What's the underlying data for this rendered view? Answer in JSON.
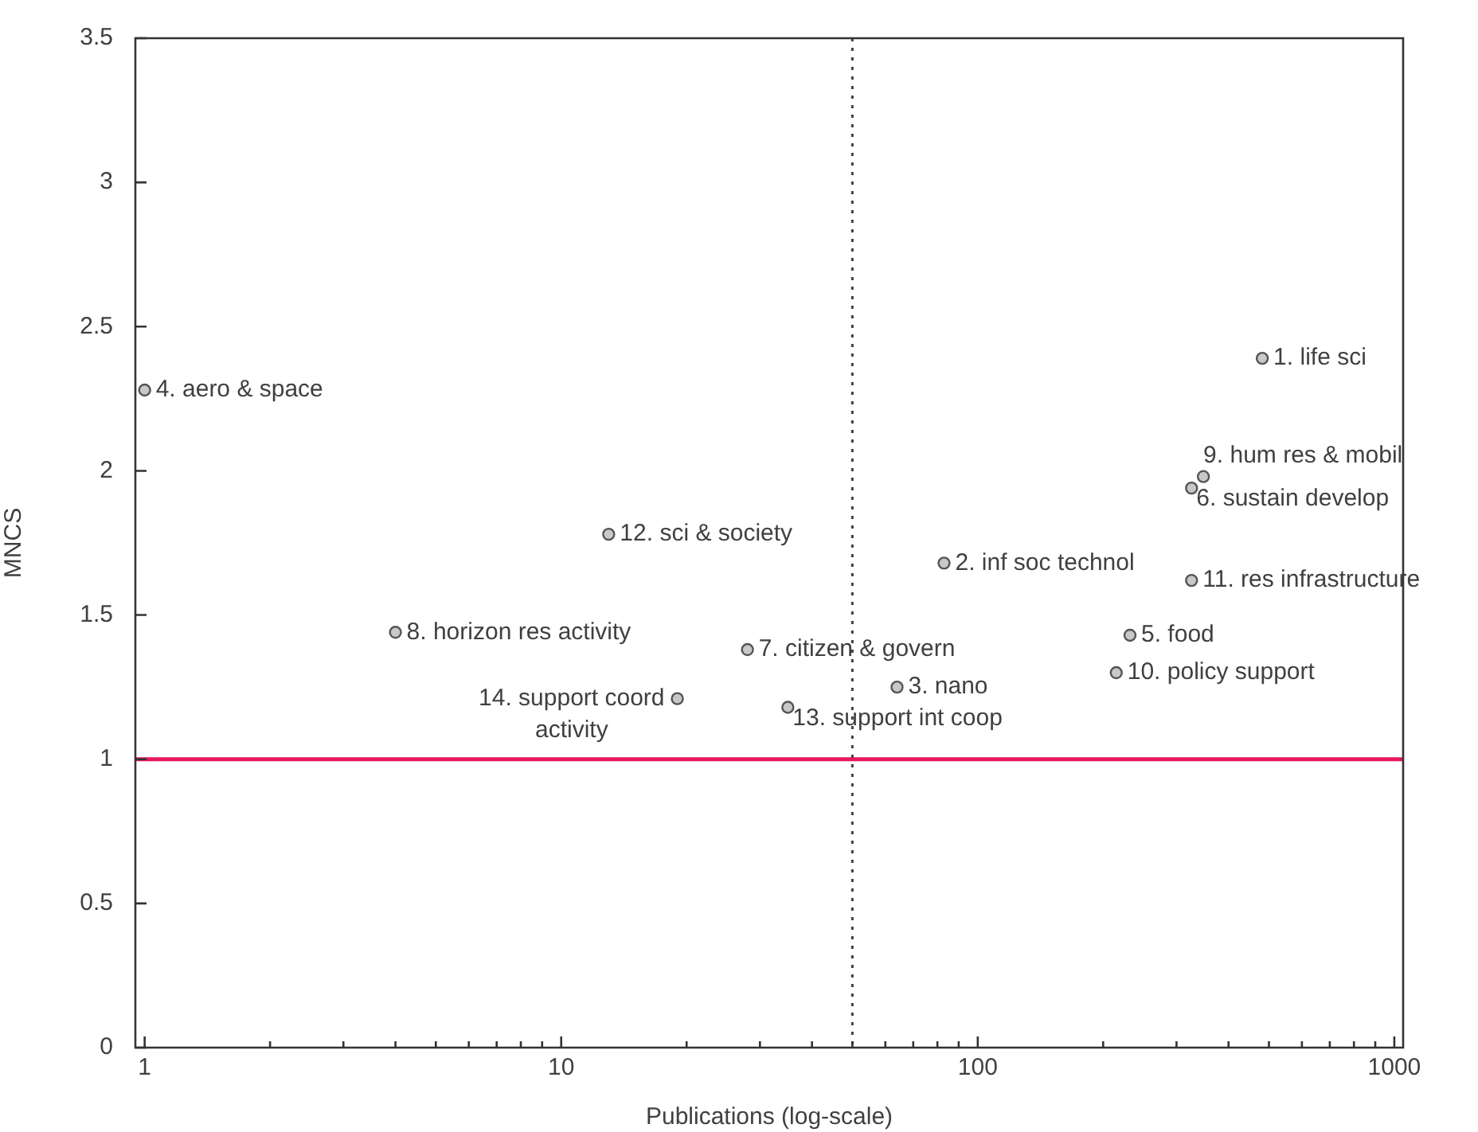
{
  "chart_data": {
    "type": "scatter",
    "xlabel": "Publications (log-scale)",
    "ylabel": "MNCS",
    "log": "x",
    "grid": false,
    "legend": false,
    "marker": "circle",
    "xlim": [
      0.95,
      1050
    ],
    "xticks": [
      1,
      {
        "value": 2,
        "label": null
      },
      {
        "value": 3,
        "label": null
      },
      {
        "value": 4,
        "label": null
      },
      {
        "value": 5,
        "label": null
      },
      {
        "value": 6,
        "label": null
      },
      {
        "value": 7,
        "label": null
      },
      {
        "value": 8,
        "label": null
      },
      {
        "value": 9,
        "label": null
      },
      10,
      {
        "value": 20,
        "label": null
      },
      {
        "value": 30,
        "label": null
      },
      {
        "value": 40,
        "label": null
      },
      {
        "value": 50,
        "label": null
      },
      {
        "value": 60,
        "label": null
      },
      {
        "value": 70,
        "label": null
      },
      {
        "value": 80,
        "label": null
      },
      {
        "value": 90,
        "label": null
      },
      100,
      {
        "value": 200,
        "label": null
      },
      {
        "value": 300,
        "label": null
      },
      {
        "value": 400,
        "label": null
      },
      {
        "value": 500,
        "label": null
      },
      {
        "value": 600,
        "label": null
      },
      {
        "value": 700,
        "label": null
      },
      {
        "value": 800,
        "label": null
      },
      {
        "value": 900,
        "label": null
      },
      1000
    ],
    "ylim": [
      0,
      3.5
    ],
    "yticks": [
      0,
      0.5,
      1,
      1.5,
      2,
      2.5,
      3,
      3.5
    ],
    "series": [
      {
        "color": "#c8c8c8",
        "x": [
          482,
          83,
          64,
          1,
          232,
          326,
          28,
          4,
          348,
          215,
          326,
          13,
          35,
          19
        ],
        "values": [
          2.39,
          1.68,
          1.25,
          2.28,
          1.43,
          1.94,
          1.38,
          1.44,
          1.98,
          1.3,
          1.62,
          1.78,
          1.18,
          1.21
        ]
      }
    ],
    "annotations": [
      {
        "text": "1. life sci",
        "x": 482,
        "y": 2.39
      },
      {
        "text": "2. inf soc technol",
        "x": 83,
        "y": 1.68
      },
      {
        "text": "3. nano",
        "x": 64,
        "y": 1.25
      },
      {
        "text": "4. aero & space",
        "x": 1,
        "y": 2.28
      },
      {
        "text": "5. food",
        "x": 232,
        "y": 1.43
      },
      {
        "text": "6. sustain develop",
        "x": 326,
        "y": 1.94
      },
      {
        "text": "7. citizen & govern",
        "x": 28,
        "y": 1.38
      },
      {
        "text": "8. horizon res activity",
        "x": 4,
        "y": 1.44
      },
      {
        "text": "9. hum res & mobil",
        "x": 348,
        "y": 1.98
      },
      {
        "text": "10. policy support",
        "x": 215,
        "y": 1.3
      },
      {
        "text": "11. res infrastructure",
        "x": 326,
        "y": 1.62
      },
      {
        "text": "12. sci & society",
        "x": 13,
        "y": 1.78
      },
      {
        "text": "13. support int coop",
        "x": 35,
        "y": 1.18
      },
      {
        "text": "14. support coord activity",
        "x": 19,
        "y": 1.21
      }
    ],
    "ref_lines": [
      {
        "axis": "y",
        "value": 1,
        "color": "#e8175d",
        "line_style": "solid"
      },
      {
        "axis": "x",
        "value": 50,
        "color": "#404040",
        "line_style": "dotted"
      }
    ]
  }
}
